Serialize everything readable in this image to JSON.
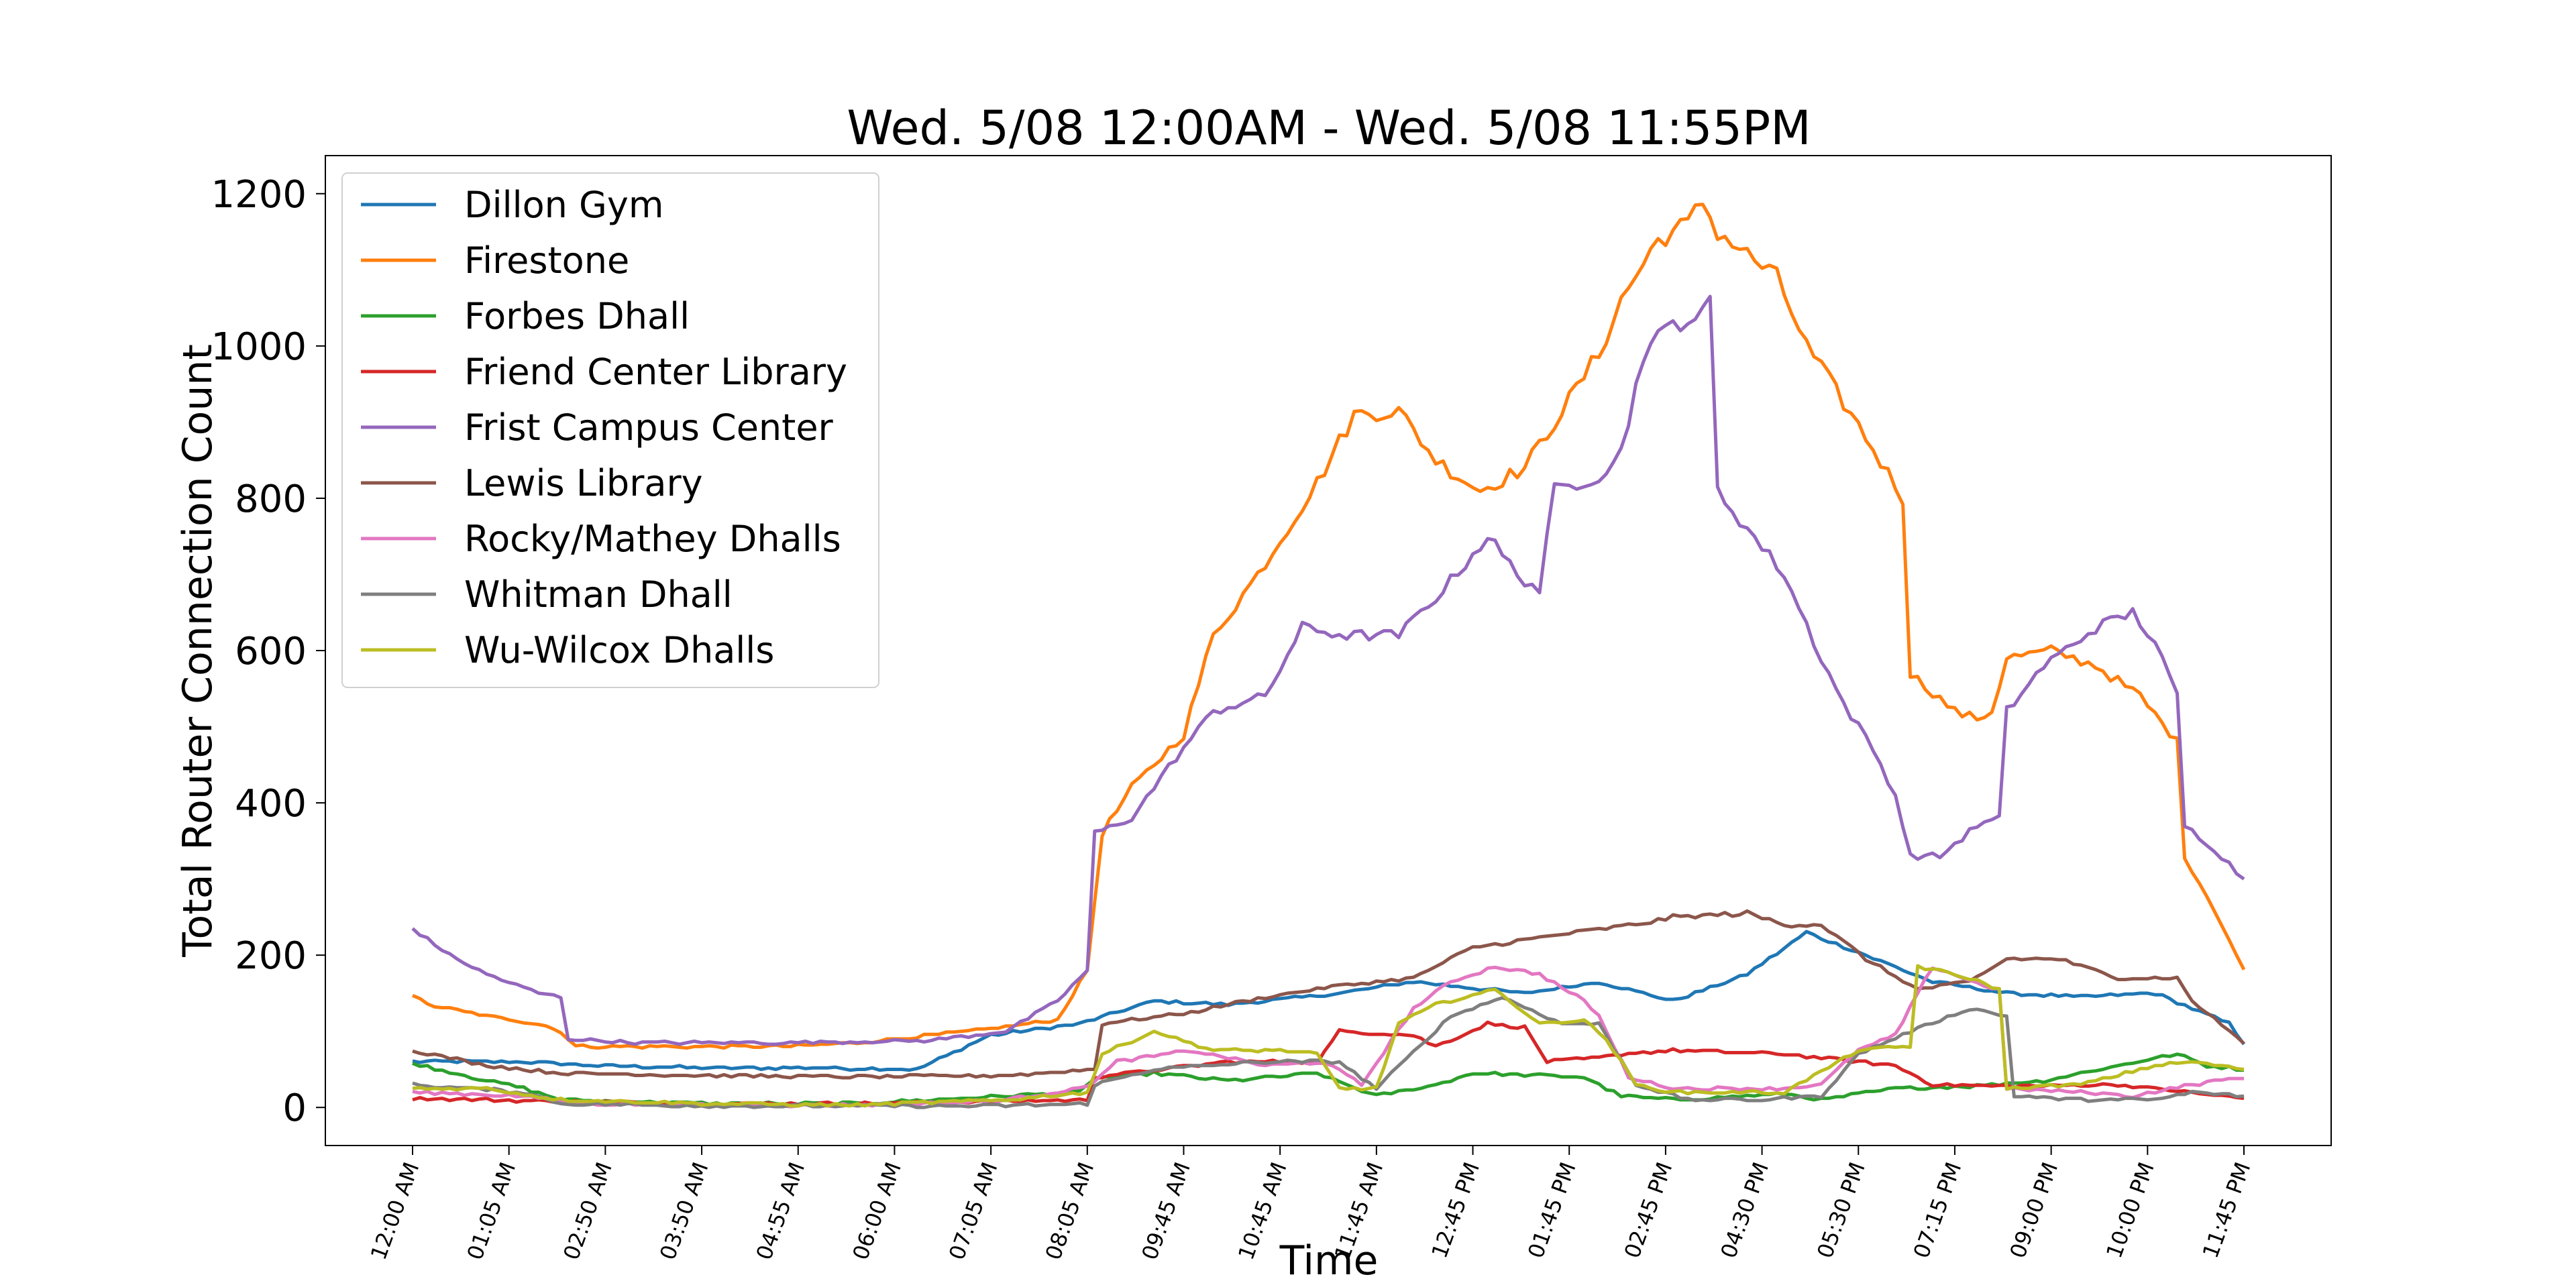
{
  "chart_data": {
    "type": "line",
    "title": "Wed. 5/08 12:00AM - Wed. 5/08 11:55PM",
    "xlabel": "Time",
    "ylabel": "Total Router Connection Count",
    "ylim": [
      -50,
      1250
    ],
    "yticks": [
      0,
      200,
      400,
      600,
      800,
      1000,
      1200
    ],
    "grid": false,
    "legend_position": "upper-left",
    "x_ticks": [
      "12:00 AM",
      "01:05 AM",
      "02:50 AM",
      "03:50 AM",
      "04:55 AM",
      "06:00 AM",
      "07:05 AM",
      "08:05 AM",
      "09:45 AM",
      "10:45 AM",
      "11:45 AM",
      "12:45 PM",
      "01:45 PM",
      "02:45 PM",
      "04:30 PM",
      "05:30 PM",
      "07:15 PM",
      "09:00 PM",
      "10:00 PM",
      "11:45 PM"
    ],
    "x_tick_index": [
      0,
      13,
      26,
      39,
      52,
      65,
      78,
      91,
      104,
      117,
      130,
      143,
      156,
      169,
      182,
      195,
      208,
      221,
      234,
      247
    ],
    "x_count": 248,
    "series": [
      {
        "name": "Dillon Gym",
        "color": "#1f77b4",
        "keys": [
          [
            0,
            60
          ],
          [
            15,
            60
          ],
          [
            25,
            55
          ],
          [
            40,
            52
          ],
          [
            55,
            52
          ],
          [
            68,
            50
          ],
          [
            78,
            95
          ],
          [
            90,
            110
          ],
          [
            100,
            140
          ],
          [
            110,
            135
          ],
          [
            125,
            150
          ],
          [
            135,
            165
          ],
          [
            150,
            150
          ],
          [
            160,
            165
          ],
          [
            170,
            140
          ],
          [
            180,
            175
          ],
          [
            188,
            230
          ],
          [
            196,
            200
          ],
          [
            205,
            165
          ],
          [
            215,
            150
          ],
          [
            225,
            145
          ],
          [
            235,
            150
          ],
          [
            245,
            110
          ],
          [
            247,
            85
          ]
        ]
      },
      {
        "name": "Firestone",
        "color": "#ff7f0e",
        "keys": [
          [
            0,
            148
          ],
          [
            2,
            135
          ],
          [
            10,
            120
          ],
          [
            17,
            110
          ],
          [
            20,
            100
          ],
          [
            22,
            80
          ],
          [
            50,
            80
          ],
          [
            60,
            85
          ],
          [
            75,
            100
          ],
          [
            87,
            115
          ],
          [
            91,
            180
          ],
          [
            93,
            360
          ],
          [
            97,
            420
          ],
          [
            104,
            490
          ],
          [
            108,
            620
          ],
          [
            114,
            700
          ],
          [
            122,
            820
          ],
          [
            127,
            910
          ],
          [
            133,
            915
          ],
          [
            138,
            850
          ],
          [
            144,
            810
          ],
          [
            150,
            840
          ],
          [
            156,
            930
          ],
          [
            160,
            990
          ],
          [
            163,
            1060
          ],
          [
            168,
            1140
          ],
          [
            172,
            1160
          ],
          [
            174,
            1190
          ],
          [
            176,
            1150
          ],
          [
            184,
            1090
          ],
          [
            188,
            1000
          ],
          [
            196,
            880
          ],
          [
            201,
            800
          ],
          [
            202,
            570
          ],
          [
            208,
            520
          ],
          [
            211,
            510
          ],
          [
            213,
            520
          ],
          [
            215,
            590
          ],
          [
            221,
            600
          ],
          [
            227,
            580
          ],
          [
            233,
            540
          ],
          [
            238,
            480
          ],
          [
            239,
            330
          ],
          [
            243,
            260
          ],
          [
            247,
            180
          ]
        ]
      },
      {
        "name": "Forbes Dhall",
        "color": "#2ca02c",
        "keys": [
          [
            0,
            58
          ],
          [
            8,
            40
          ],
          [
            15,
            25
          ],
          [
            20,
            10
          ],
          [
            40,
            5
          ],
          [
            60,
            5
          ],
          [
            80,
            15
          ],
          [
            90,
            20
          ],
          [
            92,
            38
          ],
          [
            100,
            45
          ],
          [
            110,
            35
          ],
          [
            122,
            45
          ],
          [
            130,
            15
          ],
          [
            138,
            30
          ],
          [
            143,
            45
          ],
          [
            158,
            40
          ],
          [
            163,
            15
          ],
          [
            170,
            10
          ],
          [
            185,
            18
          ],
          [
            190,
            10
          ],
          [
            200,
            25
          ],
          [
            210,
            28
          ],
          [
            220,
            35
          ],
          [
            230,
            55
          ],
          [
            238,
            70
          ],
          [
            242,
            55
          ],
          [
            247,
            50
          ]
        ]
      },
      {
        "name": "Friend Center Library",
        "color": "#d62728",
        "keys": [
          [
            0,
            12
          ],
          [
            20,
            8
          ],
          [
            40,
            5
          ],
          [
            60,
            5
          ],
          [
            78,
            8
          ],
          [
            91,
            10
          ],
          [
            92,
            40
          ],
          [
            110,
            60
          ],
          [
            122,
            60
          ],
          [
            125,
            100
          ],
          [
            135,
            95
          ],
          [
            138,
            80
          ],
          [
            145,
            110
          ],
          [
            150,
            105
          ],
          [
            153,
            60
          ],
          [
            160,
            65
          ],
          [
            163,
            70
          ],
          [
            170,
            75
          ],
          [
            185,
            70
          ],
          [
            200,
            55
          ],
          [
            205,
            30
          ],
          [
            215,
            28
          ],
          [
            230,
            30
          ],
          [
            247,
            12
          ]
        ]
      },
      {
        "name": "Frist Campus Center",
        "color": "#9467bd",
        "keys": [
          [
            0,
            235
          ],
          [
            5,
            200
          ],
          [
            10,
            175
          ],
          [
            17,
            150
          ],
          [
            20,
            145
          ],
          [
            21,
            90
          ],
          [
            30,
            85
          ],
          [
            50,
            85
          ],
          [
            70,
            88
          ],
          [
            80,
            100
          ],
          [
            87,
            140
          ],
          [
            91,
            180
          ],
          [
            92,
            360
          ],
          [
            97,
            380
          ],
          [
            103,
            460
          ],
          [
            108,
            520
          ],
          [
            115,
            540
          ],
          [
            120,
            630
          ],
          [
            126,
            620
          ],
          [
            133,
            620
          ],
          [
            139,
            680
          ],
          [
            145,
            750
          ],
          [
            149,
            700
          ],
          [
            152,
            680
          ],
          [
            154,
            810
          ],
          [
            160,
            830
          ],
          [
            163,
            860
          ],
          [
            166,
            990
          ],
          [
            170,
            1030
          ],
          [
            174,
            1040
          ],
          [
            175,
            1060
          ],
          [
            176,
            810
          ],
          [
            180,
            760
          ],
          [
            185,
            700
          ],
          [
            190,
            590
          ],
          [
            193,
            530
          ],
          [
            197,
            470
          ],
          [
            200,
            410
          ],
          [
            202,
            330
          ],
          [
            206,
            330
          ],
          [
            211,
            370
          ],
          [
            214,
            380
          ],
          [
            215,
            520
          ],
          [
            220,
            580
          ],
          [
            227,
            630
          ],
          [
            232,
            650
          ],
          [
            235,
            610
          ],
          [
            238,
            540
          ],
          [
            239,
            370
          ],
          [
            243,
            340
          ],
          [
            247,
            300
          ]
        ]
      },
      {
        "name": "Lewis Library",
        "color": "#8c564b",
        "keys": [
          [
            0,
            75
          ],
          [
            10,
            55
          ],
          [
            20,
            45
          ],
          [
            40,
            42
          ],
          [
            60,
            40
          ],
          [
            80,
            42
          ],
          [
            92,
            50
          ],
          [
            93,
            110
          ],
          [
            105,
            125
          ],
          [
            115,
            145
          ],
          [
            125,
            160
          ],
          [
            135,
            170
          ],
          [
            143,
            210
          ],
          [
            150,
            220
          ],
          [
            157,
            230
          ],
          [
            165,
            240
          ],
          [
            170,
            250
          ],
          [
            180,
            255
          ],
          [
            185,
            240
          ],
          [
            190,
            240
          ],
          [
            196,
            195
          ],
          [
            203,
            155
          ],
          [
            210,
            165
          ],
          [
            215,
            195
          ],
          [
            222,
            195
          ],
          [
            230,
            170
          ],
          [
            238,
            170
          ],
          [
            240,
            140
          ],
          [
            247,
            85
          ]
        ]
      },
      {
        "name": "Rocky/Mathey Dhalls",
        "color": "#e377c2",
        "keys": [
          [
            0,
            20
          ],
          [
            15,
            15
          ],
          [
            22,
            5
          ],
          [
            40,
            3
          ],
          [
            60,
            3
          ],
          [
            70,
            5
          ],
          [
            80,
            10
          ],
          [
            90,
            25
          ],
          [
            92,
            35
          ],
          [
            95,
            60
          ],
          [
            105,
            75
          ],
          [
            115,
            55
          ],
          [
            123,
            60
          ],
          [
            128,
            30
          ],
          [
            135,
            130
          ],
          [
            140,
            165
          ],
          [
            146,
            185
          ],
          [
            152,
            175
          ],
          [
            158,
            140
          ],
          [
            160,
            120
          ],
          [
            164,
            40
          ],
          [
            170,
            25
          ],
          [
            185,
            25
          ],
          [
            190,
            30
          ],
          [
            195,
            75
          ],
          [
            200,
            95
          ],
          [
            205,
            185
          ],
          [
            212,
            160
          ],
          [
            214,
            155
          ],
          [
            215,
            25
          ],
          [
            225,
            20
          ],
          [
            232,
            15
          ],
          [
            240,
            30
          ],
          [
            247,
            40
          ]
        ]
      },
      {
        "name": "Whitman Dhall",
        "color": "#7f7f7f",
        "keys": [
          [
            0,
            30
          ],
          [
            15,
            20
          ],
          [
            20,
            5
          ],
          [
            40,
            2
          ],
          [
            60,
            2
          ],
          [
            78,
            2
          ],
          [
            91,
            5
          ],
          [
            92,
            30
          ],
          [
            100,
            50
          ],
          [
            115,
            60
          ],
          [
            125,
            60
          ],
          [
            130,
            25
          ],
          [
            140,
            120
          ],
          [
            147,
            145
          ],
          [
            155,
            110
          ],
          [
            160,
            110
          ],
          [
            165,
            30
          ],
          [
            172,
            10
          ],
          [
            182,
            10
          ],
          [
            190,
            15
          ],
          [
            195,
            70
          ],
          [
            202,
            100
          ],
          [
            210,
            130
          ],
          [
            215,
            120
          ],
          [
            216,
            15
          ],
          [
            225,
            10
          ],
          [
            235,
            10
          ],
          [
            240,
            20
          ],
          [
            247,
            15
          ]
        ]
      },
      {
        "name": "Wu-Wilcox Dhalls",
        "color": "#bcbd22",
        "keys": [
          [
            0,
            25
          ],
          [
            10,
            25
          ],
          [
            20,
            10
          ],
          [
            40,
            5
          ],
          [
            60,
            3
          ],
          [
            80,
            10
          ],
          [
            91,
            20
          ],
          [
            93,
            70
          ],
          [
            100,
            100
          ],
          [
            108,
            75
          ],
          [
            117,
            75
          ],
          [
            122,
            70
          ],
          [
            125,
            25
          ],
          [
            130,
            25
          ],
          [
            133,
            110
          ],
          [
            138,
            135
          ],
          [
            146,
            155
          ],
          [
            152,
            110
          ],
          [
            158,
            115
          ],
          [
            161,
            90
          ],
          [
            165,
            30
          ],
          [
            170,
            20
          ],
          [
            185,
            20
          ],
          [
            195,
            75
          ],
          [
            202,
            80
          ],
          [
            203,
            185
          ],
          [
            210,
            170
          ],
          [
            214,
            155
          ],
          [
            215,
            25
          ],
          [
            225,
            30
          ],
          [
            235,
            55
          ],
          [
            240,
            60
          ],
          [
            247,
            50
          ]
        ]
      }
    ]
  }
}
